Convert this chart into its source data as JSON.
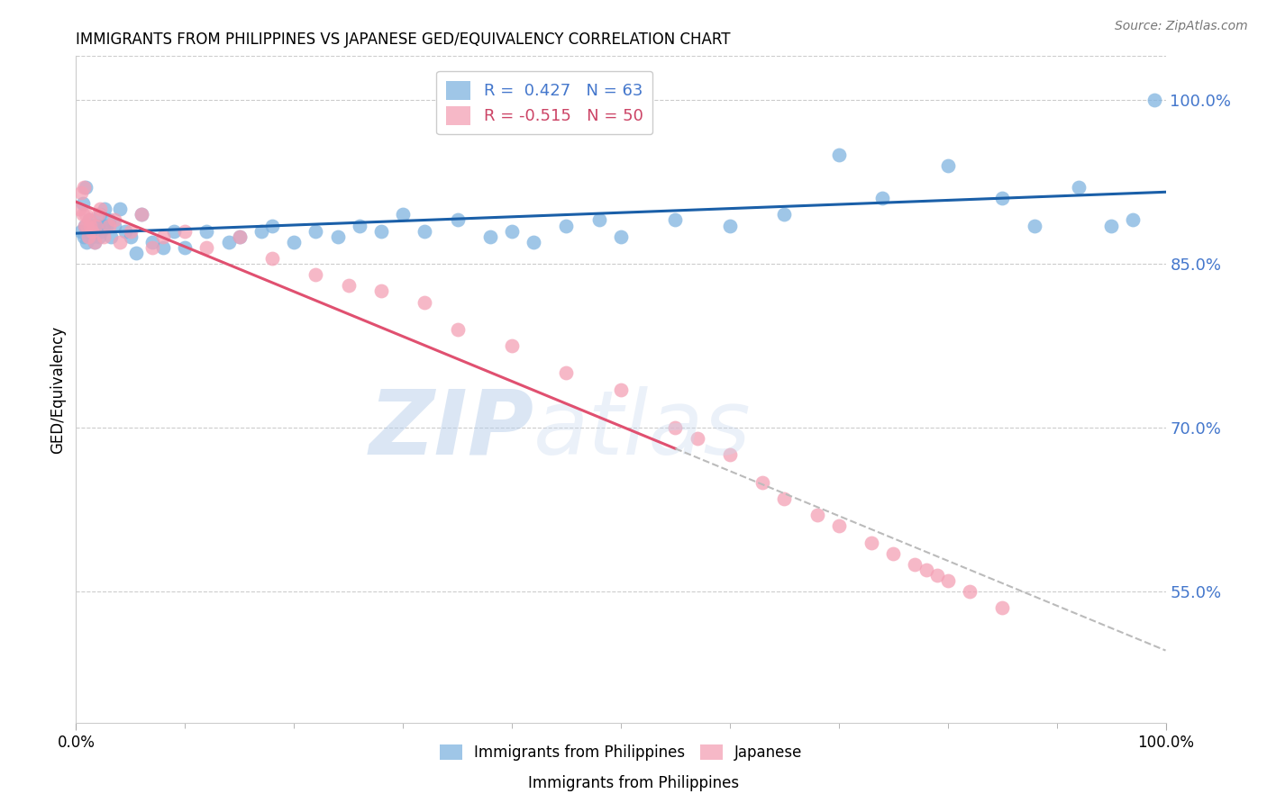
{
  "title": "IMMIGRANTS FROM PHILIPPINES VS JAPANESE GED/EQUIVALENCY CORRELATION CHART",
  "source": "Source: ZipAtlas.com",
  "ylabel": "GED/Equivalency",
  "R1": 0.427,
  "N1": 63,
  "R2": -0.515,
  "N2": 50,
  "color1": "#7FB3E0",
  "color2": "#F4A0B5",
  "line_color1": "#1A5FA8",
  "line_color2": "#E05070",
  "background": "#FFFFFF",
  "watermark_zip": "ZIP",
  "watermark_atlas": "atlas",
  "watermark_color": "#C5D8EE",
  "xlim": [
    0.0,
    100.0
  ],
  "ylim": [
    43.0,
    104.0
  ],
  "yticks": [
    55.0,
    70.0,
    85.0,
    100.0
  ],
  "xtick_minor": [
    10.0,
    20.0,
    30.0,
    40.0,
    50.0,
    60.0,
    70.0,
    80.0,
    90.0
  ],
  "legend_label1": "Immigrants from Philippines",
  "legend_label2": "Japanese",
  "blue_x": [
    0.5,
    0.6,
    0.7,
    0.8,
    0.9,
    1.0,
    1.1,
    1.2,
    1.3,
    1.5,
    1.6,
    1.7,
    1.8,
    2.0,
    2.1,
    2.2,
    2.3,
    2.5,
    2.6,
    2.8,
    3.0,
    3.2,
    3.5,
    4.0,
    4.5,
    5.0,
    5.5,
    6.0,
    7.0,
    8.0,
    9.0,
    10.0,
    12.0,
    14.0,
    15.0,
    17.0,
    18.0,
    20.0,
    22.0,
    24.0,
    26.0,
    28.0,
    30.0,
    32.0,
    35.0,
    38.0,
    40.0,
    42.0,
    45.0,
    48.0,
    50.0,
    55.0,
    60.0,
    65.0,
    70.0,
    74.0,
    80.0,
    85.0,
    88.0,
    92.0,
    95.0,
    97.0,
    99.0
  ],
  "blue_y": [
    88.0,
    90.5,
    87.5,
    88.5,
    92.0,
    87.0,
    88.0,
    89.0,
    88.0,
    87.5,
    88.5,
    87.0,
    88.0,
    88.5,
    87.5,
    89.5,
    88.0,
    88.5,
    90.0,
    88.5,
    89.0,
    87.5,
    88.5,
    90.0,
    88.0,
    87.5,
    86.0,
    89.5,
    87.0,
    86.5,
    88.0,
    86.5,
    88.0,
    87.0,
    87.5,
    88.0,
    88.5,
    87.0,
    88.0,
    87.5,
    88.5,
    88.0,
    89.5,
    88.0,
    89.0,
    87.5,
    88.0,
    87.0,
    88.5,
    89.0,
    87.5,
    89.0,
    88.5,
    89.5,
    95.0,
    91.0,
    94.0,
    91.0,
    88.5,
    92.0,
    88.5,
    89.0,
    100.0
  ],
  "pink_x": [
    0.3,
    0.5,
    0.6,
    0.7,
    0.8,
    0.9,
    1.0,
    1.1,
    1.2,
    1.3,
    1.5,
    1.7,
    1.8,
    2.0,
    2.2,
    2.5,
    3.0,
    3.5,
    4.0,
    5.0,
    6.0,
    7.0,
    8.0,
    10.0,
    12.0,
    15.0,
    18.0,
    22.0,
    25.0,
    28.0,
    32.0,
    35.0,
    40.0,
    45.0,
    50.0,
    55.0,
    57.0,
    60.0,
    63.0,
    65.0,
    68.0,
    70.0,
    73.0,
    75.0,
    77.0,
    78.0,
    79.0,
    80.0,
    82.0,
    85.0
  ],
  "pink_y": [
    90.0,
    91.5,
    89.5,
    92.0,
    88.5,
    89.5,
    88.5,
    87.5,
    89.0,
    88.5,
    88.0,
    87.0,
    88.5,
    89.5,
    90.0,
    87.5,
    88.5,
    89.0,
    87.0,
    88.0,
    89.5,
    86.5,
    87.5,
    88.0,
    86.5,
    87.5,
    85.5,
    84.0,
    83.0,
    82.5,
    81.5,
    79.0,
    77.5,
    75.0,
    73.5,
    70.0,
    69.0,
    67.5,
    65.0,
    63.5,
    62.0,
    61.0,
    59.5,
    58.5,
    57.5,
    57.0,
    56.5,
    56.0,
    55.0,
    53.5
  ]
}
